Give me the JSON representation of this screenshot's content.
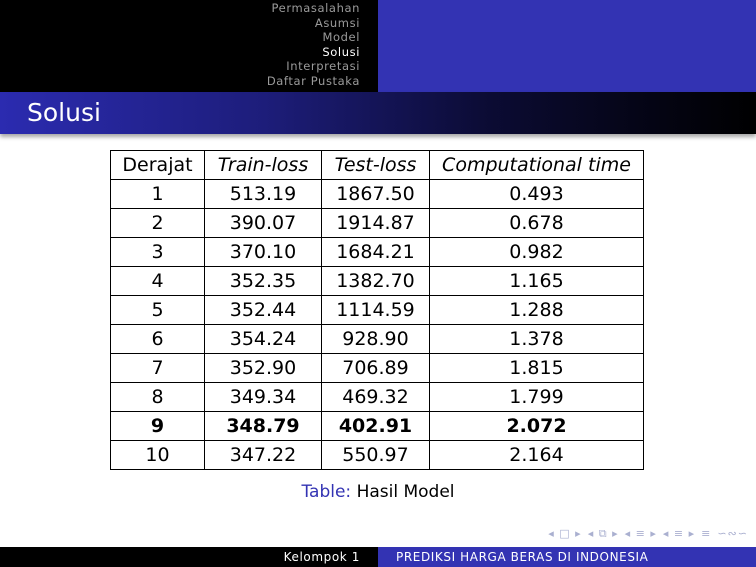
{
  "nav": {
    "sections": [
      "Permasalahan",
      "Asumsi",
      "Model",
      "Solusi",
      "Interpretasi",
      "Daftar Pustaka"
    ],
    "active_index": 3
  },
  "frame": {
    "title": "Solusi"
  },
  "table": {
    "headers": [
      "Derajat",
      "Train-loss",
      "Test-loss",
      "Computational time"
    ],
    "rows": [
      [
        "1",
        "513.19",
        "1867.50",
        "0.493"
      ],
      [
        "2",
        "390.07",
        "1914.87",
        "0.678"
      ],
      [
        "3",
        "370.10",
        "1684.21",
        "0.982"
      ],
      [
        "4",
        "352.35",
        "1382.70",
        "1.165"
      ],
      [
        "5",
        "352.44",
        "1114.59",
        "1.288"
      ],
      [
        "6",
        "354.24",
        "928.90",
        "1.378"
      ],
      [
        "7",
        "352.90",
        "706.89",
        "1.815"
      ],
      [
        "8",
        "349.34",
        "469.32",
        "1.799"
      ],
      [
        "9",
        "348.79",
        "402.91",
        "2.072"
      ],
      [
        "10",
        "347.22",
        "550.97",
        "2.164"
      ]
    ],
    "highlight_row_index": 8,
    "caption_label": "Table:",
    "caption_text": "Hasil Model"
  },
  "footer": {
    "left": "Kelompok 1",
    "right": "PREDIKSI HARGA BERAS DI INDONESIA"
  },
  "navigation_symbols": [
    "◂ □ ▸",
    "◂ ⧉ ▸",
    "◂ ≡ ▸",
    "◂ ≡ ▸",
    "≡",
    "∽∾∽"
  ],
  "colors": {
    "beamer_blue": "#3333b3",
    "inactive_nav": "#9a9a9a",
    "nav_symbols": "#aab0d0"
  }
}
